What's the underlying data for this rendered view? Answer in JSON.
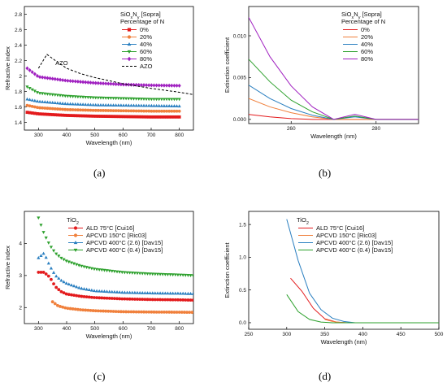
{
  "panels": [
    {
      "label": "(a)"
    },
    {
      "label": "(b)"
    },
    {
      "label": "(c)"
    },
    {
      "label": "(d)"
    }
  ],
  "chart_data": [
    {
      "type": "scatter",
      "xlabel": "Wavelength (nm)",
      "ylabel": "Refractive index",
      "xlim": [
        250,
        850
      ],
      "ylim": [
        1.3,
        2.9
      ],
      "xticks": [
        300,
        400,
        500,
        600,
        700,
        800
      ],
      "yticks": [
        1.4,
        1.6,
        1.8,
        2.0,
        2.2,
        2.4,
        2.6,
        2.8
      ],
      "legend_title_line1": "SiOxNy [Sopra]",
      "legend_title_line2": "Percentage of N",
      "legend_position": "top-right",
      "annotation": "AZO",
      "series": [
        {
          "name": "0%",
          "marker": "square",
          "color": "#e31a1c",
          "x": [
            260,
            300,
            400,
            500,
            600,
            700,
            800
          ],
          "y": [
            1.53,
            1.51,
            1.49,
            1.48,
            1.475,
            1.47,
            1.47
          ]
        },
        {
          "name": "20%",
          "marker": "circle",
          "color": "#f0803c",
          "x": [
            260,
            300,
            400,
            500,
            600,
            700,
            800
          ],
          "y": [
            1.62,
            1.59,
            1.565,
            1.555,
            1.55,
            1.545,
            1.545
          ]
        },
        {
          "name": "40%",
          "marker": "triangle-up",
          "color": "#2a7fc0",
          "x": [
            260,
            300,
            400,
            500,
            600,
            700,
            800
          ],
          "y": [
            1.7,
            1.67,
            1.64,
            1.625,
            1.62,
            1.615,
            1.61
          ]
        },
        {
          "name": "60%",
          "marker": "triangle-down",
          "color": "#2ca02c",
          "x": [
            260,
            300,
            400,
            500,
            600,
            700,
            800
          ],
          "y": [
            1.86,
            1.78,
            1.74,
            1.72,
            1.71,
            1.7,
            1.7
          ]
        },
        {
          "name": "80%",
          "marker": "diamond",
          "color": "#a020c0",
          "x": [
            260,
            300,
            400,
            500,
            600,
            700,
            800
          ],
          "y": [
            2.1,
            1.99,
            1.94,
            1.91,
            1.89,
            1.88,
            1.875
          ]
        },
        {
          "name": "AZO",
          "style": "dashed",
          "color": "#000000",
          "x": [
            300,
            330,
            360,
            400,
            450,
            500,
            600,
            700,
            800,
            850
          ],
          "y": [
            2.1,
            2.28,
            2.2,
            2.1,
            2.03,
            1.98,
            1.9,
            1.84,
            1.79,
            1.76
          ]
        }
      ]
    },
    {
      "type": "line",
      "xlabel": "Wavelength (nm)",
      "ylabel": "Extinction coefficient",
      "xlim": [
        250,
        290
      ],
      "ylim": [
        -0.0005,
        0.0135
      ],
      "xticks": [
        260,
        280
      ],
      "yticks": [
        0.0,
        0.005,
        0.01
      ],
      "ytick_labels": [
        "0.000",
        "0.005",
        "0.010"
      ],
      "legend_title_line1": "SiOxNy [Sopra]",
      "legend_title_line2": "Percentage of N",
      "legend_position": "top-right",
      "series": [
        {
          "name": "0%",
          "color": "#e31a1c",
          "x": [
            250,
            255,
            260,
            265,
            270,
            275,
            280,
            290
          ],
          "y": [
            0.0006,
            0.0003,
            0.0001,
            0.0,
            0.0,
            0.0,
            0.0,
            0.0
          ]
        },
        {
          "name": "20%",
          "color": "#f0803c",
          "x": [
            250,
            255,
            260,
            265,
            270,
            275,
            280,
            290
          ],
          "y": [
            0.0025,
            0.0015,
            0.0008,
            0.0003,
            0.0,
            0.0,
            0.0,
            0.0
          ]
        },
        {
          "name": "40%",
          "color": "#2a7fc0",
          "x": [
            250,
            255,
            260,
            265,
            270,
            275,
            280,
            290
          ],
          "y": [
            0.0041,
            0.0025,
            0.0013,
            0.0005,
            0.0,
            0.0003,
            0.0,
            0.0
          ]
        },
        {
          "name": "60%",
          "color": "#2ca02c",
          "x": [
            250,
            255,
            260,
            265,
            270,
            275,
            280,
            290
          ],
          "y": [
            0.0072,
            0.0045,
            0.0023,
            0.0009,
            0.0,
            0.0004,
            0.0,
            0.0
          ]
        },
        {
          "name": "80%",
          "color": "#a020c0",
          "x": [
            250,
            255,
            260,
            265,
            270,
            275,
            280,
            290
          ],
          "y": [
            0.0122,
            0.0075,
            0.004,
            0.0015,
            0.0,
            0.0006,
            0.0,
            0.0
          ]
        }
      ]
    },
    {
      "type": "scatter",
      "xlabel": "Wavelength (nm)",
      "ylabel": "Refractive index",
      "xlim": [
        250,
        850
      ],
      "ylim": [
        1.5,
        5.0
      ],
      "xticks": [
        300,
        400,
        500,
        600,
        700,
        800
      ],
      "yticks": [
        2,
        3,
        4
      ],
      "legend_title": "TiO2",
      "legend_position": "top-right",
      "series": [
        {
          "name": "ALD 75°C [Cui16]",
          "marker": "circle",
          "color": "#e31a1c",
          "x": [
            300,
            320,
            340,
            360,
            380,
            400,
            450,
            500,
            600,
            700,
            800,
            850
          ],
          "y": [
            3.1,
            3.1,
            2.95,
            2.65,
            2.5,
            2.42,
            2.35,
            2.31,
            2.27,
            2.25,
            2.24,
            2.23
          ]
        },
        {
          "name": "APCVD 150°C [Ric03]",
          "marker": "circle",
          "color": "#f0803c",
          "x": [
            350,
            370,
            400,
            450,
            500,
            600,
            700,
            800,
            850
          ],
          "y": [
            2.18,
            2.05,
            1.98,
            1.93,
            1.9,
            1.87,
            1.86,
            1.855,
            1.85
          ]
        },
        {
          "name": "APCVD 400°C (2.6) [Dav15]",
          "marker": "triangle-up",
          "color": "#2a7fc0",
          "x": [
            300,
            320,
            340,
            360,
            380,
            400,
            450,
            500,
            600,
            700,
            800,
            850
          ],
          "y": [
            3.55,
            3.7,
            3.3,
            3.0,
            2.85,
            2.75,
            2.6,
            2.52,
            2.47,
            2.45,
            2.44,
            2.43
          ]
        },
        {
          "name": "APCVD 400°C (0.4) [Dav15]",
          "marker": "triangle-down",
          "color": "#2ca02c",
          "x": [
            300,
            320,
            340,
            360,
            380,
            400,
            450,
            500,
            600,
            700,
            800,
            850
          ],
          "y": [
            4.8,
            4.3,
            3.95,
            3.7,
            3.55,
            3.45,
            3.3,
            3.2,
            3.1,
            3.05,
            3.02,
            3.0
          ]
        }
      ]
    },
    {
      "type": "line",
      "xlabel": "Wavelength (nm)",
      "ylabel": "Extinction coefficient",
      "xlim": [
        250,
        500
      ],
      "ylim": [
        -0.1,
        1.7
      ],
      "xticks": [
        250,
        300,
        350,
        400,
        450,
        500
      ],
      "yticks": [
        0.0,
        0.5,
        1.0,
        1.5
      ],
      "ytick_labels": [
        "0.0",
        "0.5",
        "1.0",
        "1.5"
      ],
      "legend_title": "TiO2",
      "legend_position": "top-right",
      "series": [
        {
          "name": "ALD 75°C [Cui16]",
          "color": "#e31a1c",
          "x": [
            305,
            320,
            335,
            350,
            365,
            380,
            500
          ],
          "y": [
            0.68,
            0.48,
            0.22,
            0.06,
            0.01,
            0.0,
            0.0
          ]
        },
        {
          "name": "APCVD 150°C [Ric03]",
          "color": "#f0803c",
          "x": [
            350,
            360,
            370,
            380,
            500
          ],
          "y": [
            0.05,
            0.02,
            0.005,
            0.0,
            0.0
          ]
        },
        {
          "name": "APCVD 400°C (2.6) [Dav15]",
          "color": "#2a7fc0",
          "x": [
            300,
            315,
            330,
            345,
            360,
            375,
            390,
            500
          ],
          "y": [
            1.58,
            0.95,
            0.45,
            0.2,
            0.07,
            0.02,
            0.0,
            0.0
          ]
        },
        {
          "name": "APCVD 400°C (0.4) [Dav15]",
          "color": "#2ca02c",
          "x": [
            300,
            315,
            330,
            345,
            360,
            500
          ],
          "y": [
            0.43,
            0.17,
            0.05,
            0.01,
            0.0,
            0.0
          ]
        }
      ]
    }
  ]
}
